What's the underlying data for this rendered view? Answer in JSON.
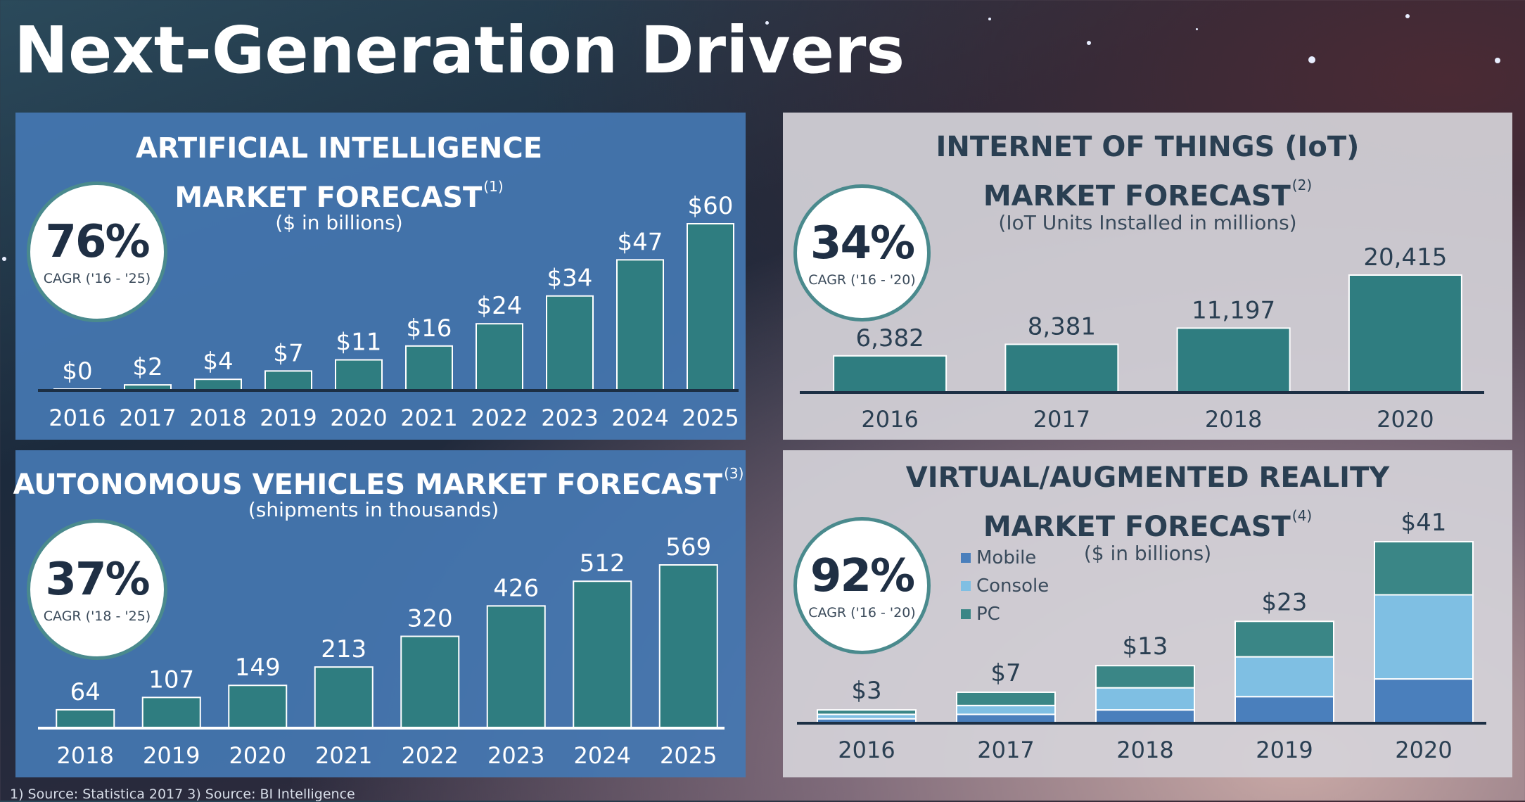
{
  "page": {
    "title": "Next-Generation Drivers"
  },
  "colors": {
    "teal": "#2f7d80",
    "mobile": "#4a7fbc",
    "console": "#7fbfe3",
    "pc": "#3a8686",
    "blue_panel": "#4577b2",
    "grey_panel": "#d4d2d8",
    "baseline": "#1c2f44"
  },
  "footnote": "1)   Source: Statistica 2017     3)   Source: BI Intelligence",
  "chart_data": [
    {
      "type": "bar",
      "title_line1": "ARTIFICIAL INTELLIGENCE",
      "title_line2": "MARKET FORECAST",
      "note": "(1)",
      "subtitle": "($ in billions)",
      "cagr_value": "76%",
      "cagr_label": "CAGR ('16 - '25)",
      "categories": [
        "2016",
        "2017",
        "2018",
        "2019",
        "2020",
        "2021",
        "2022",
        "2023",
        "2024",
        "2025"
      ],
      "values": [
        0,
        2,
        4,
        7,
        11,
        16,
        24,
        34,
        47,
        60
      ],
      "labels": [
        "$0",
        "$2",
        "$4",
        "$7",
        "$11",
        "$16",
        "$24",
        "$34",
        "$47",
        "$60"
      ],
      "ylim": [
        0,
        60
      ]
    },
    {
      "type": "bar",
      "title_line1": "INTERNET OF THINGS (IoT)",
      "title_line2": "MARKET FORECAST",
      "note": "(2)",
      "subtitle": "(IoT Units Installed in millions)",
      "cagr_value": "34%",
      "cagr_label": "CAGR ('16 - '20)",
      "categories": [
        "2016",
        "2017",
        "2018",
        "2020"
      ],
      "values": [
        6382,
        8381,
        11197,
        20415
      ],
      "labels": [
        "6,382",
        "8,381",
        "11,197",
        "20,415"
      ],
      "ylim": [
        0,
        20415
      ]
    },
    {
      "type": "bar",
      "title_line1": "AUTONOMOUS VEHICLES MARKET FORECAST",
      "note": "(3)",
      "subtitle": "(shipments in thousands)",
      "cagr_value": "37%",
      "cagr_label": "CAGR ('18 - '25)",
      "categories": [
        "2018",
        "2019",
        "2020",
        "2021",
        "2022",
        "2023",
        "2024",
        "2025"
      ],
      "values": [
        64,
        107,
        149,
        213,
        320,
        426,
        512,
        569
      ],
      "labels": [
        "64",
        "107",
        "149",
        "213",
        "320",
        "426",
        "512",
        "569"
      ],
      "ylim": [
        0,
        569
      ]
    },
    {
      "type": "bar",
      "stacked": true,
      "title_line1": "VIRTUAL/AUGMENTED REALITY",
      "title_line2": "MARKET FORECAST",
      "note": "(4)",
      "subtitle": "($ in billions)",
      "cagr_value": "92%",
      "cagr_label": "CAGR ('16 - '20)",
      "categories": [
        "2016",
        "2017",
        "2018",
        "2019",
        "2020"
      ],
      "totals": [
        3,
        7,
        13,
        23,
        41
      ],
      "labels": [
        "$3",
        "$7",
        "$13",
        "$23",
        "$41"
      ],
      "series": [
        {
          "name": "Mobile",
          "values": [
            1,
            2,
            3,
            6,
            10
          ]
        },
        {
          "name": "Console",
          "values": [
            1,
            2,
            5,
            9,
            19
          ]
        },
        {
          "name": "PC",
          "values": [
            1,
            3,
            5,
            8,
            12
          ]
        }
      ],
      "ylim": [
        0,
        41
      ]
    }
  ]
}
